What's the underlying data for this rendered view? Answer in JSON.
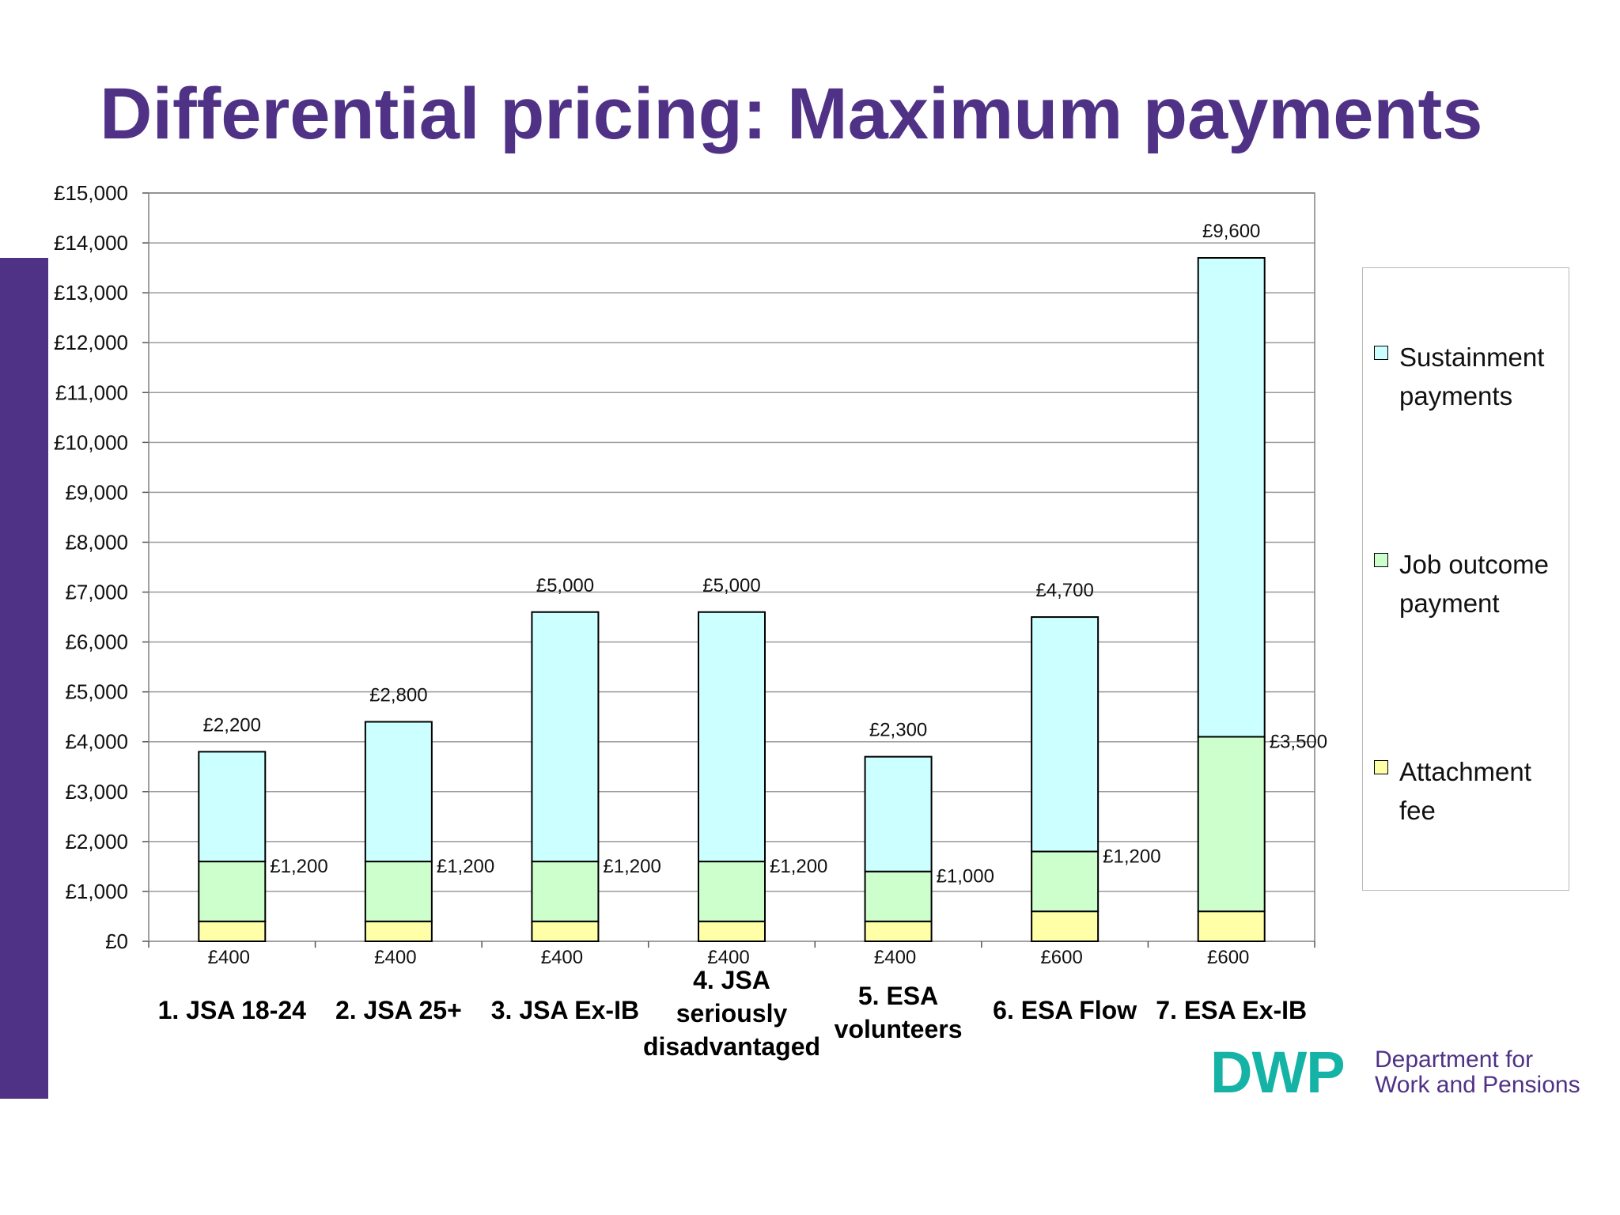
{
  "slide": {
    "title": "Differential pricing: Maximum payments",
    "accent_color": "#4f3186"
  },
  "chart_data": {
    "type": "bar",
    "stacked": true,
    "title": "",
    "xlabel": "",
    "ylabel": "",
    "ylim": [
      0,
      15000
    ],
    "y_ticks": [
      "£0",
      "£1,000",
      "£2,000",
      "£3,000",
      "£4,000",
      "£5,000",
      "£6,000",
      "£7,000",
      "£8,000",
      "£9,000",
      "£10,000",
      "£11,000",
      "£12,000",
      "£13,000",
      "£14,000",
      "£15,000"
    ],
    "grid": true,
    "legend_position": "right",
    "categories": [
      [
        "1. JSA 18-24"
      ],
      [
        "2. JSA 25+"
      ],
      [
        "3. JSA Ex-IB"
      ],
      [
        "4. JSA",
        "seriously",
        "disadvantaged"
      ],
      [
        "5. ESA",
        "volunteers"
      ],
      [
        "6. ESA Flow"
      ],
      [
        "7. ESA Ex-IB"
      ]
    ],
    "series": [
      {
        "name": "Attachment fee",
        "color": "#ffffa8",
        "values": [
          400,
          400,
          400,
          400,
          400,
          600,
          600
        ],
        "labels": [
          "£400",
          "£400",
          "£400",
          "£400",
          "£400",
          "£600",
          "£600"
        ]
      },
      {
        "name": "Job outcome payment",
        "color": "#ccffcc",
        "values": [
          1200,
          1200,
          1200,
          1200,
          1000,
          1200,
          3500
        ],
        "labels": [
          "£1,200",
          "£1,200",
          "£1,200",
          "£1,200",
          "£1,000",
          "£1,200",
          "£3,500"
        ]
      },
      {
        "name": "Sustainment payments",
        "color": "#ccffff",
        "values": [
          2200,
          2800,
          5000,
          5000,
          2300,
          4700,
          9600
        ],
        "labels": [
          "£2,200",
          "£2,800",
          "£5,000",
          "£5,000",
          "£2,300",
          "£4,700",
          "£9,600"
        ]
      }
    ]
  },
  "legend": {
    "items": [
      {
        "lines": [
          "Sustainment",
          "payments"
        ],
        "color": "#ccffff"
      },
      {
        "lines": [
          "Job outcome",
          "payment"
        ],
        "color": "#ccffcc"
      },
      {
        "lines": [
          "Attachment",
          "fee"
        ],
        "color": "#ffffa8"
      }
    ]
  },
  "logo": {
    "mark": "DWP",
    "name": "Department for\nWork and Pensions",
    "mark_color": "#14b3a6"
  }
}
